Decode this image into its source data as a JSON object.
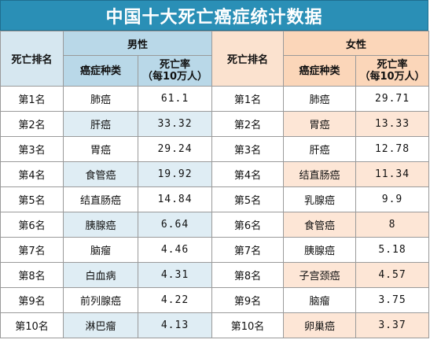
{
  "title": "中国十大死亡癌症统计数据",
  "headers": {
    "rank": "死亡排名",
    "male": "男性",
    "female": "女性",
    "cancer_type": "癌症种类",
    "death_rate_line1": "死亡率",
    "death_rate_line2": "（每10万人）"
  },
  "rows": [
    {
      "m_rank": "第1名",
      "m_type": "肺癌",
      "m_rate": "61.1",
      "f_rank": "第1名",
      "f_type": "肺癌",
      "f_rate": "29.71"
    },
    {
      "m_rank": "第2名",
      "m_type": "肝癌",
      "m_rate": "33.32",
      "f_rank": "第2名",
      "f_type": "胃癌",
      "f_rate": "13.33"
    },
    {
      "m_rank": "第3名",
      "m_type": "胃癌",
      "m_rate": "29.24",
      "f_rank": "第3名",
      "f_type": "肝癌",
      "f_rate": "12.78"
    },
    {
      "m_rank": "第4名",
      "m_type": "食管癌",
      "m_rate": "19.92",
      "f_rank": "第4名",
      "f_type": "结直肠癌",
      "f_rate": "11.34"
    },
    {
      "m_rank": "第5名",
      "m_type": "结直肠癌",
      "m_rate": "14.84",
      "f_rank": "第5名",
      "f_type": "乳腺癌",
      "f_rate": "9.9"
    },
    {
      "m_rank": "第6名",
      "m_type": "胰腺癌",
      "m_rate": "6.64",
      "f_rank": "第6名",
      "f_type": "食管癌",
      "f_rate": "8"
    },
    {
      "m_rank": "第7名",
      "m_type": "脑瘤",
      "m_rate": "4.46",
      "f_rank": "第7名",
      "f_type": "胰腺癌",
      "f_rate": "5.18"
    },
    {
      "m_rank": "第8名",
      "m_type": "白血病",
      "m_rate": "4.31",
      "f_rank": "第8名",
      "f_type": "子宫颈癌",
      "f_rate": "4.57"
    },
    {
      "m_rank": "第9名",
      "m_type": "前列腺癌",
      "m_rate": "4.22",
      "f_rank": "第9名",
      "f_type": "脑瘤",
      "f_rate": "3.75"
    },
    {
      "m_rank": "第10名",
      "m_type": "淋巴瘤",
      "m_rate": "4.13",
      "f_rank": "第10名",
      "f_type": "卵巢癌",
      "f_rate": "3.37"
    }
  ]
}
